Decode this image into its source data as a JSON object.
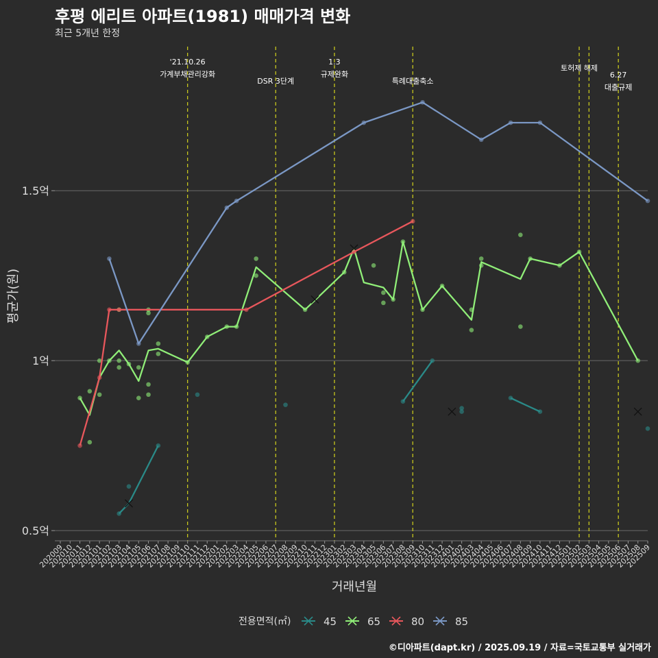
{
  "chart_data": {
    "type": "line",
    "title": "후평 에리트 아파트(1981) 매매가격 변화",
    "subtitle": "최근 5개년 한정",
    "xlabel": "거래년월",
    "ylabel": "평균가(원)",
    "caption": "©디아파트(dapt.kr) / 2025.09.19 / 자료=국토교통부 실거래가",
    "ylim": [
      0.47,
      1.94
    ],
    "yticks": [
      0.5,
      1.0,
      1.5
    ],
    "ytick_labels": [
      "0.5억",
      "1억",
      "1.5억"
    ],
    "x_ticks": [
      "202009",
      "202010",
      "202011",
      "202012",
      "202101",
      "202102",
      "202103",
      "202104",
      "202105",
      "202106",
      "202107",
      "202108",
      "202109",
      "202110",
      "202111",
      "202112",
      "202201",
      "202202",
      "202203",
      "202204",
      "202205",
      "202206",
      "202207",
      "202208",
      "202209",
      "202210",
      "202211",
      "202212",
      "202301",
      "202302",
      "202303",
      "202304",
      "202305",
      "202306",
      "202307",
      "202308",
      "202309",
      "202310",
      "202311",
      "202312",
      "202401",
      "202402",
      "202403",
      "202404",
      "202405",
      "202406",
      "202407",
      "202408",
      "202409",
      "202410",
      "202411",
      "202412",
      "202501",
      "202502",
      "202503",
      "202504",
      "202505",
      "202506",
      "202507",
      "202508",
      "202509"
    ],
    "legend_title": "전용면적(㎡)",
    "legend_position": "bottom",
    "series": [
      {
        "name": "45",
        "color": "#2a8a88",
        "segments": [
          [
            [
              "202103",
              0.55
            ],
            [
              "202104",
              0.58
            ],
            [
              "202107",
              0.75
            ]
          ],
          [
            [
              "202308",
              0.88
            ],
            [
              "202311",
              1.0
            ]
          ],
          [
            [
              "202407",
              0.89
            ],
            [
              "202410",
              0.85
            ]
          ]
        ],
        "points": [
          [
            "202103",
            0.55
          ],
          [
            "202104",
            0.63
          ],
          [
            "202107",
            0.75
          ],
          [
            "202111",
            0.9
          ],
          [
            "202208",
            0.87
          ],
          [
            "202308",
            0.88
          ],
          [
            "202311",
            1.0
          ],
          [
            "202402",
            0.86
          ],
          [
            "202402",
            0.85
          ],
          [
            "202407",
            0.89
          ],
          [
            "202410",
            0.85
          ],
          [
            "202509",
            0.8
          ]
        ],
        "crosses": [
          [
            "202104",
            0.58
          ],
          [
            "202401",
            0.85
          ],
          [
            "202508",
            0.85
          ]
        ]
      },
      {
        "name": "65",
        "color": "#90ee78",
        "segments": [
          [
            [
              "202011",
              0.89
            ],
            [
              "202012",
              0.84
            ],
            [
              "202101",
              0.95
            ],
            [
              "202102",
              1.0
            ],
            [
              "202103",
              1.03
            ],
            [
              "202104",
              0.99
            ],
            [
              "202105",
              0.94
            ],
            [
              "202106",
              1.03
            ],
            [
              "202107",
              1.035
            ],
            [
              "202110",
              0.995
            ],
            [
              "202112",
              1.07
            ],
            [
              "202202",
              1.1
            ],
            [
              "202203",
              1.1
            ],
            [
              "202205",
              1.275
            ],
            [
              "202210",
              1.15
            ],
            [
              "202302",
              1.26
            ],
            [
              "202303",
              1.33
            ],
            [
              "202304",
              1.23
            ],
            [
              "202306",
              1.215
            ],
            [
              "202307",
              1.18
            ],
            [
              "202308",
              1.35
            ],
            [
              "202310",
              1.15
            ],
            [
              "202312",
              1.22
            ],
            [
              "202403",
              1.12
            ],
            [
              "202404",
              1.29
            ],
            [
              "202408",
              1.24
            ],
            [
              "202409",
              1.3
            ],
            [
              "202412",
              1.28
            ],
            [
              "202502",
              1.32
            ],
            [
              "202508",
              1.0
            ]
          ]
        ],
        "points": [
          [
            "202011",
            0.89
          ],
          [
            "202012",
            0.91
          ],
          [
            "202012",
            0.76
          ],
          [
            "202101",
            0.9
          ],
          [
            "202101",
            1.0
          ],
          [
            "202102",
            1.0
          ],
          [
            "202103",
            1.0
          ],
          [
            "202103",
            0.98
          ],
          [
            "202103",
            1.15
          ],
          [
            "202104",
            0.99
          ],
          [
            "202105",
            0.98
          ],
          [
            "202105",
            0.89
          ],
          [
            "202106",
            0.93
          ],
          [
            "202106",
            0.9
          ],
          [
            "202106",
            1.15
          ],
          [
            "202106",
            1.14
          ],
          [
            "202107",
            1.05
          ],
          [
            "202107",
            1.02
          ],
          [
            "202110",
            0.995
          ],
          [
            "202112",
            1.07
          ],
          [
            "202202",
            1.1
          ],
          [
            "202203",
            1.1
          ],
          [
            "202205",
            1.3
          ],
          [
            "202205",
            1.25
          ],
          [
            "202210",
            1.15
          ],
          [
            "202302",
            1.26
          ],
          [
            "202305",
            1.28
          ],
          [
            "202306",
            1.2
          ],
          [
            "202306",
            1.17
          ],
          [
            "202307",
            1.18
          ],
          [
            "202308",
            1.35
          ],
          [
            "202310",
            1.15
          ],
          [
            "202312",
            1.22
          ],
          [
            "202403",
            1.15
          ],
          [
            "202403",
            1.09
          ],
          [
            "202404",
            1.3
          ],
          [
            "202404",
            1.28
          ],
          [
            "202408",
            1.37
          ],
          [
            "202408",
            1.1
          ],
          [
            "202409",
            1.3
          ],
          [
            "202412",
            1.28
          ],
          [
            "202502",
            1.32
          ],
          [
            "202508",
            1.0
          ]
        ],
        "crosses": [
          [
            "202303",
            1.33
          ]
        ]
      },
      {
        "name": "80",
        "color": "#e8575c",
        "segments": [
          [
            [
              "202011",
              0.75
            ],
            [
              "202101",
              0.95
            ],
            [
              "202102",
              1.15
            ],
            [
              "202204",
              1.15
            ],
            [
              "202303",
              1.32
            ],
            [
              "202309",
              1.41
            ]
          ]
        ],
        "points": [
          [
            "202011",
            0.75
          ],
          [
            "202101",
            0.95
          ],
          [
            "202102",
            1.15
          ],
          [
            "202103",
            1.15
          ],
          [
            "202204",
            1.15
          ],
          [
            "202303",
            1.32
          ],
          [
            "202309",
            1.41
          ]
        ],
        "crosses": [
          [
            "202211",
            1.18
          ]
        ]
      },
      {
        "name": "85",
        "color": "#7b98c5",
        "segments": [
          [
            [
              "202102",
              1.3
            ],
            [
              "202105",
              1.05
            ],
            [
              "202202",
              1.45
            ],
            [
              "202203",
              1.47
            ],
            [
              "202304",
              1.7
            ],
            [
              "202310",
              1.76
            ],
            [
              "202404",
              1.65
            ],
            [
              "202407",
              1.7
            ],
            [
              "202410",
              1.7
            ],
            [
              "202509",
              1.47
            ]
          ]
        ],
        "points": [
          [
            "202102",
            1.3
          ],
          [
            "202105",
            1.05
          ],
          [
            "202202",
            1.45
          ],
          [
            "202203",
            1.47
          ],
          [
            "202304",
            1.7
          ],
          [
            "202310",
            1.76
          ],
          [
            "202404",
            1.65
          ],
          [
            "202407",
            1.7
          ],
          [
            "202410",
            1.7
          ],
          [
            "202509",
            1.47
          ]
        ],
        "crosses": []
      }
    ],
    "events": [
      {
        "date": "202110",
        "lines": [
          "'21.10.26",
          "가계부채관리강화"
        ]
      },
      {
        "date": "202207",
        "lines": [
          "DSR 3단계"
        ]
      },
      {
        "date": "202301",
        "lines": [
          "1.3",
          "규제완화"
        ]
      },
      {
        "date": "202309",
        "lines": [
          "특례대출축소"
        ]
      },
      {
        "date": "202502",
        "lines": [
          "토허제 해제"
        ]
      },
      {
        "date": "202503",
        "lines": []
      },
      {
        "date": "202506",
        "lines": [
          "6.27",
          "대출규제"
        ]
      }
    ]
  }
}
